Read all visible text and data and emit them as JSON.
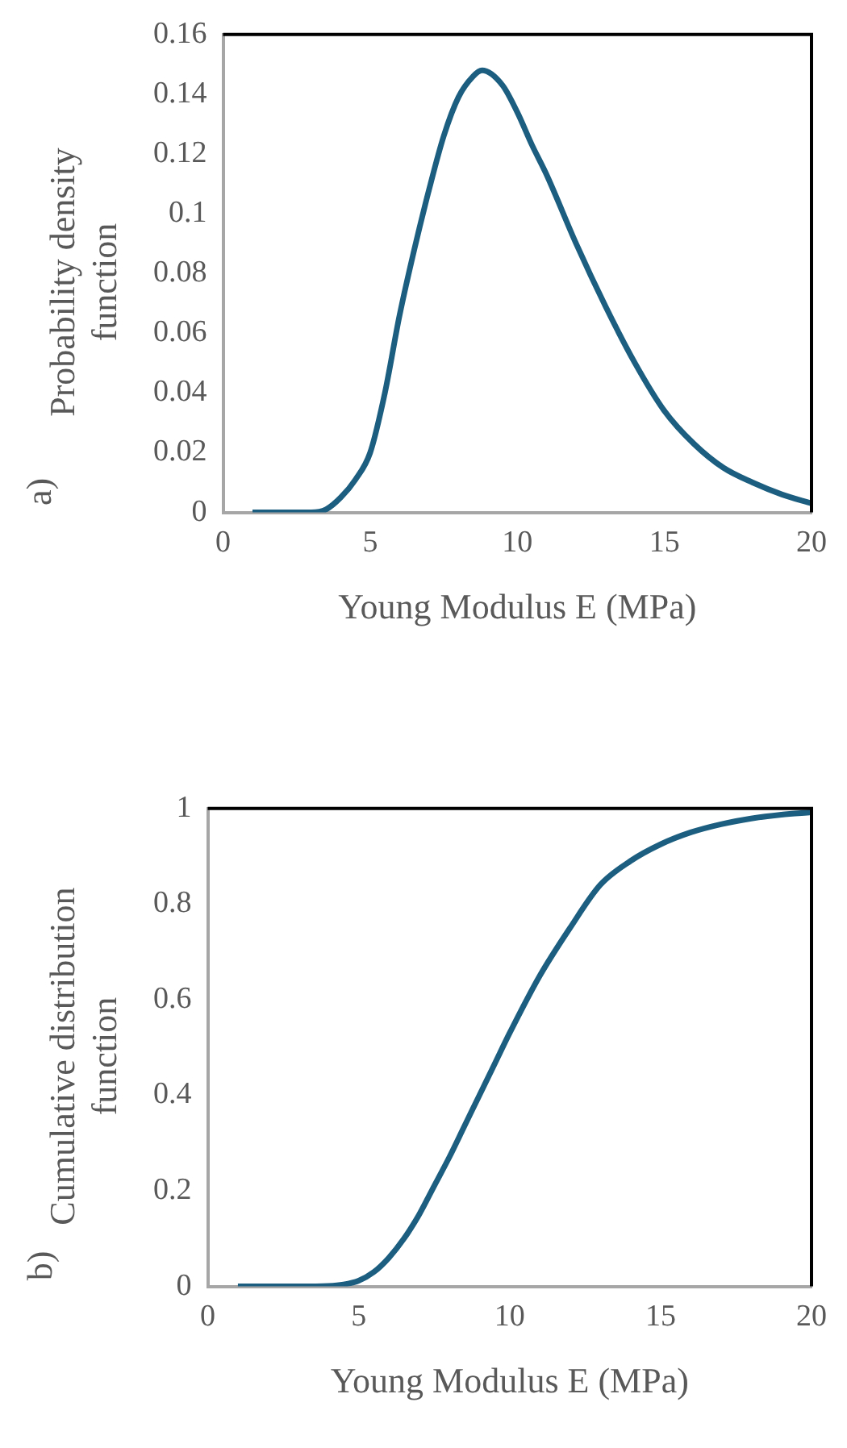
{
  "chart_data": [
    {
      "type": "line",
      "xlabel": "Young Modulus E (MPa)",
      "ylabel": "Probability density function",
      "annotations": [
        "a)"
      ],
      "x": [
        1,
        2,
        3,
        3.5,
        4,
        4.5,
        5,
        5.5,
        6,
        6.5,
        7,
        7.5,
        8,
        8.5,
        8.8,
        9.5,
        10,
        10.5,
        11,
        12,
        13,
        14,
        15,
        16,
        17,
        18,
        19,
        20
      ],
      "series": [
        {
          "color": "#1b5e7f",
          "values": [
            0,
            0,
            0,
            0.001,
            0.005,
            0.011,
            0.02,
            0.04,
            0.066,
            0.088,
            0.108,
            0.126,
            0.139,
            0.146,
            0.148,
            0.143,
            0.134,
            0.123,
            0.113,
            0.09,
            0.069,
            0.05,
            0.034,
            0.023,
            0.015,
            0.01,
            0.006,
            0.003
          ]
        }
      ],
      "xlim": [
        0,
        20
      ],
      "xticks": [
        0,
        5,
        10,
        15,
        20
      ],
      "ylim": [
        0,
        0.16
      ],
      "yticks": [
        0,
        0.02,
        0.04,
        0.06,
        0.08,
        0.1,
        0.12,
        0.14,
        0.16
      ],
      "grid": false,
      "legend": false,
      "marker": "none",
      "line_style": "solid"
    },
    {
      "type": "line",
      "xlabel": "Young Modulus E (MPa)",
      "ylabel": "Cumulative distribution function",
      "annotations": [
        "b)"
      ],
      "x": [
        1,
        2,
        3,
        4,
        4.5,
        5,
        5.5,
        6,
        6.5,
        7,
        7.5,
        8,
        8.5,
        9,
        9.5,
        10,
        11,
        12,
        13,
        14,
        15,
        16,
        17,
        18,
        19,
        20
      ],
      "series": [
        {
          "color": "#1b5e7f",
          "values": [
            0,
            0,
            0,
            0.001,
            0.004,
            0.012,
            0.03,
            0.06,
            0.1,
            0.15,
            0.21,
            0.27,
            0.335,
            0.4,
            0.465,
            0.53,
            0.65,
            0.75,
            0.84,
            0.89,
            0.925,
            0.95,
            0.967,
            0.979,
            0.987,
            0.992
          ]
        }
      ],
      "xlim": [
        0,
        20
      ],
      "xticks": [
        0,
        5,
        10,
        15,
        20
      ],
      "ylim": [
        0,
        1
      ],
      "yticks": [
        0,
        0.2,
        0.4,
        0.6,
        0.8,
        1
      ],
      "grid": false,
      "legend": false,
      "marker": "none",
      "line_style": "solid"
    }
  ]
}
